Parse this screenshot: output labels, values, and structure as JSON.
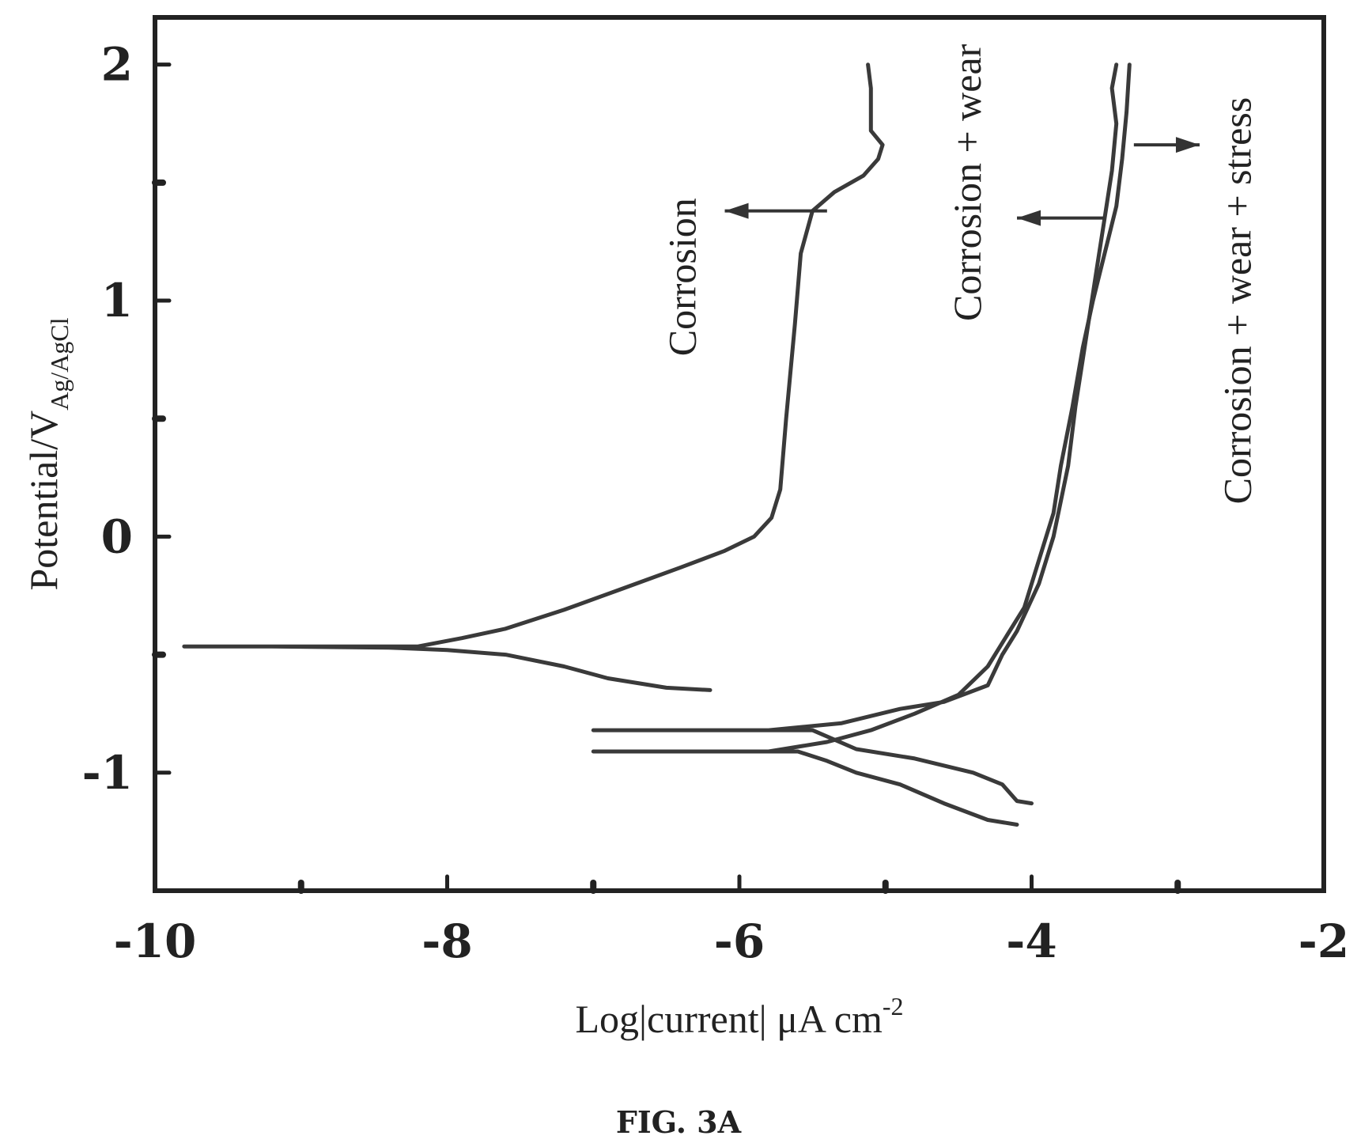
{
  "chart_data": {
    "type": "line",
    "title": "",
    "xlabel": "Log|current| μA cm",
    "xlabel_superscript": "-2",
    "ylabel": "Potential/V",
    "ylabel_subscript": "Ag/AgCl",
    "xlim": [
      -10,
      -2
    ],
    "ylim": [
      -1.5,
      2.2
    ],
    "x_ticks": [
      "-10",
      "-8",
      "-6",
      "-4",
      "-2"
    ],
    "y_ticks": [
      "-1",
      "0",
      "1",
      "2"
    ],
    "grid": false,
    "caption": "FIG. 3A",
    "series": [
      {
        "name": "Corrosion",
        "color": "#3a3a3a",
        "points": [
          [
            -6.2,
            -0.65
          ],
          [
            -6.5,
            -0.64
          ],
          [
            -6.9,
            -0.6
          ],
          [
            -7.2,
            -0.55
          ],
          [
            -7.6,
            -0.5
          ],
          [
            -8.0,
            -0.48
          ],
          [
            -8.4,
            -0.47
          ],
          [
            -9.2,
            -0.465
          ],
          [
            -9.8,
            -0.465
          ],
          [
            -9.0,
            -0.465
          ],
          [
            -8.2,
            -0.465
          ],
          [
            -7.9,
            -0.43
          ],
          [
            -7.6,
            -0.39
          ],
          [
            -7.2,
            -0.31
          ],
          [
            -6.8,
            -0.22
          ],
          [
            -6.4,
            -0.13
          ],
          [
            -6.1,
            -0.06
          ],
          [
            -5.9,
            0.0
          ],
          [
            -5.78,
            0.08
          ],
          [
            -5.72,
            0.2
          ],
          [
            -5.68,
            0.5
          ],
          [
            -5.62,
            0.9
          ],
          [
            -5.58,
            1.2
          ],
          [
            -5.5,
            1.38
          ],
          [
            -5.35,
            1.46
          ],
          [
            -5.15,
            1.53
          ],
          [
            -5.05,
            1.6
          ],
          [
            -5.02,
            1.66
          ],
          [
            -5.1,
            1.72
          ],
          [
            -5.1,
            1.9
          ],
          [
            -5.12,
            2.0
          ]
        ]
      },
      {
        "name": "Corrosion + wear",
        "color": "#3a3a3a",
        "points": [
          [
            -4.0,
            -1.13
          ],
          [
            -4.1,
            -1.12
          ],
          [
            -4.2,
            -1.05
          ],
          [
            -4.4,
            -1.0
          ],
          [
            -4.8,
            -0.94
          ],
          [
            -5.2,
            -0.9
          ],
          [
            -5.5,
            -0.82
          ],
          [
            -7.0,
            -0.82
          ],
          [
            -5.8,
            -0.82
          ],
          [
            -5.3,
            -0.79
          ],
          [
            -4.9,
            -0.73
          ],
          [
            -4.6,
            -0.7
          ],
          [
            -4.3,
            -0.63
          ],
          [
            -4.2,
            -0.5
          ],
          [
            -4.1,
            -0.4
          ],
          [
            -3.95,
            -0.2
          ],
          [
            -3.85,
            0.0
          ],
          [
            -3.75,
            0.3
          ],
          [
            -3.7,
            0.55
          ],
          [
            -3.65,
            0.75
          ],
          [
            -3.6,
            0.95
          ],
          [
            -3.55,
            1.15
          ],
          [
            -3.5,
            1.35
          ],
          [
            -3.45,
            1.55
          ],
          [
            -3.42,
            1.75
          ],
          [
            -3.45,
            1.9
          ],
          [
            -3.42,
            2.0
          ]
        ]
      },
      {
        "name": "Corrosion + wear + stress",
        "color": "#3a3a3a",
        "points": [
          [
            -4.1,
            -1.22
          ],
          [
            -4.3,
            -1.2
          ],
          [
            -4.6,
            -1.13
          ],
          [
            -4.9,
            -1.05
          ],
          [
            -5.2,
            -1.0
          ],
          [
            -5.4,
            -0.95
          ],
          [
            -5.6,
            -0.91
          ],
          [
            -7.0,
            -0.91
          ],
          [
            -5.8,
            -0.91
          ],
          [
            -5.4,
            -0.87
          ],
          [
            -5.1,
            -0.82
          ],
          [
            -4.8,
            -0.75
          ],
          [
            -4.5,
            -0.67
          ],
          [
            -4.3,
            -0.55
          ],
          [
            -4.2,
            -0.45
          ],
          [
            -4.05,
            -0.3
          ],
          [
            -3.95,
            -0.1
          ],
          [
            -3.85,
            0.1
          ],
          [
            -3.8,
            0.3
          ],
          [
            -3.72,
            0.55
          ],
          [
            -3.65,
            0.8
          ],
          [
            -3.58,
            1.0
          ],
          [
            -3.5,
            1.2
          ],
          [
            -3.42,
            1.4
          ],
          [
            -3.38,
            1.6
          ],
          [
            -3.35,
            1.8
          ],
          [
            -3.33,
            2.0
          ]
        ]
      }
    ],
    "annotations": [
      {
        "text": "Corrosion",
        "x": -6.3,
        "y": 1.1
      },
      {
        "text": "Corrosion + wear",
        "x": -4.35,
        "y": 1.5
      },
      {
        "text": "Corrosion + wear + stress",
        "x": -2.5,
        "y": 1.0
      }
    ]
  }
}
